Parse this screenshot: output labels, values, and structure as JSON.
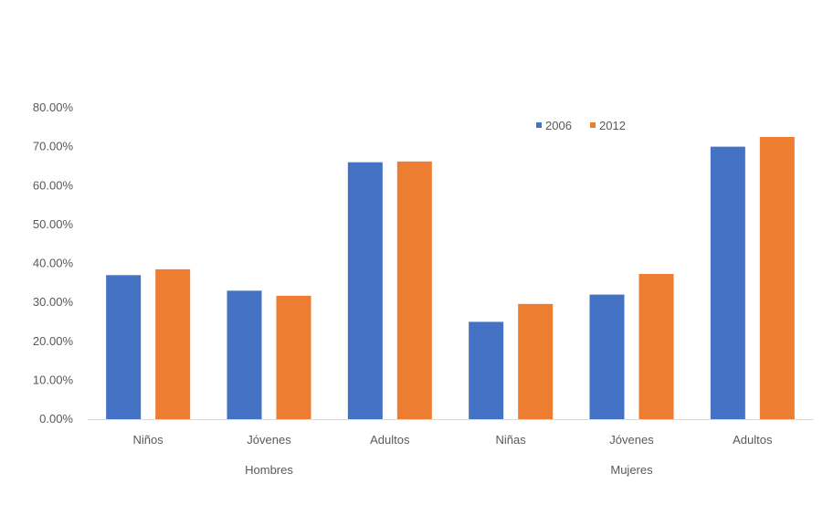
{
  "chart_data": {
    "type": "bar",
    "groups": [
      {
        "label": "Hombres",
        "categories": [
          "Niños",
          "Jóvenes",
          "Adultos"
        ]
      },
      {
        "label": "Mujeres",
        "categories": [
          "Niñas",
          "Jóvenes",
          "Adultos"
        ]
      }
    ],
    "categories": [
      "Niños",
      "Jóvenes",
      "Adultos",
      "Niñas",
      "Jóvenes",
      "Adultos"
    ],
    "series": [
      {
        "name": "2006",
        "color": "#4472C4",
        "values": [
          37.0,
          33.0,
          66.0,
          25.0,
          32.0,
          70.0
        ]
      },
      {
        "name": "2012",
        "color": "#ED7D31",
        "values": [
          38.5,
          31.7,
          66.2,
          29.6,
          37.3,
          72.5
        ]
      }
    ],
    "value_unit": "percent",
    "ylim": [
      0,
      80
    ],
    "yticks": [
      "0.00%",
      "10.00%",
      "20.00%",
      "30.00%",
      "40.00%",
      "50.00%",
      "60.00%",
      "70.00%",
      "80.00%"
    ],
    "title": "",
    "xlabel": "",
    "ylabel": "",
    "legend_position": "top-right",
    "grid": false
  }
}
